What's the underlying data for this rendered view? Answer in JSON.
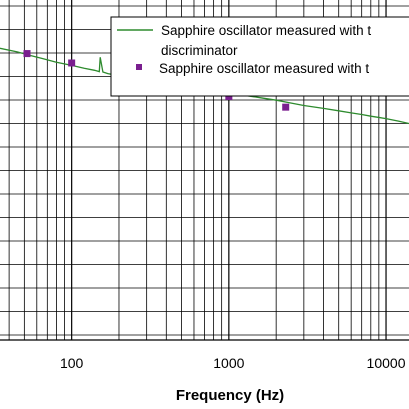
{
  "chart_data": {
    "type": "line",
    "xlabel": "Frequency (Hz)",
    "x_scale": "log",
    "xlim": [
      35,
      14000
    ],
    "x_ticks": [
      {
        "value": 100,
        "label": "100"
      },
      {
        "value": 1000,
        "label": "1000"
      },
      {
        "value": 10000,
        "label": "10000"
      }
    ],
    "grid": true,
    "legend_placement": "top-right",
    "legend": [
      {
        "label_line1": "Sapphire oscillator measured with t",
        "label_line2": "discriminator",
        "marker": "line",
        "color": "#2e8b2e"
      },
      {
        "label_line1": "Sapphire oscillator measured with t",
        "marker": "square",
        "color": "#7a1f8f"
      }
    ],
    "series": [
      {
        "name": "Sapphire oscillator measured with t discriminator",
        "style": "line",
        "color": "#2e8b2e",
        "x": [
          35,
          45,
          55,
          65,
          80,
          100,
          120,
          140,
          150,
          152,
          158,
          170,
          200,
          240,
          258,
          262,
          270,
          300,
          350,
          400,
          500,
          600,
          800,
          1000,
          1300,
          1600,
          2000,
          2500,
          3000,
          4000,
          5000,
          6000,
          7000,
          8000,
          10000,
          12000,
          14000
        ],
        "y": [
          0.118,
          0.127,
          0.136,
          0.143,
          0.152,
          0.16,
          0.167,
          0.172,
          0.175,
          0.14,
          0.176,
          0.18,
          0.185,
          0.19,
          0.162,
          0.192,
          0.194,
          0.198,
          0.203,
          0.207,
          0.212,
          0.217,
          0.224,
          0.228,
          0.234,
          0.239,
          0.245,
          0.252,
          0.258,
          0.265,
          0.271,
          0.276,
          0.28,
          0.284,
          0.29,
          0.296,
          0.302
        ]
      },
      {
        "name": "Sapphire oscillator measured with t",
        "style": "markers",
        "color": "#7a1f8f",
        "x": [
          52,
          100,
          270,
          520,
          1000,
          2300
        ],
        "y": [
          0.131,
          0.154,
          0.191,
          0.21,
          0.236,
          0.262
        ]
      }
    ]
  }
}
